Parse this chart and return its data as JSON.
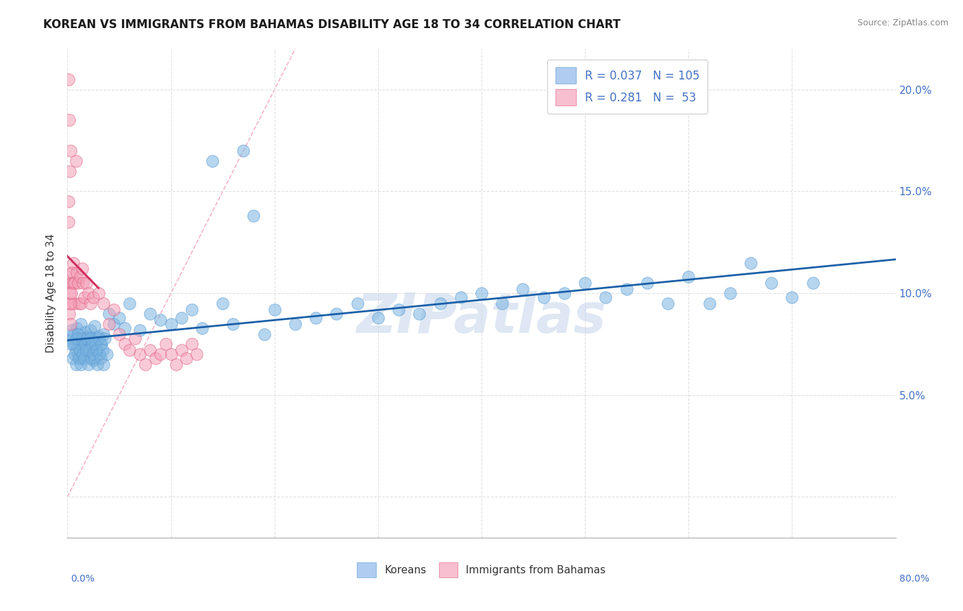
{
  "title": "KOREAN VS IMMIGRANTS FROM BAHAMAS DISABILITY AGE 18 TO 34 CORRELATION CHART",
  "source": "Source: ZipAtlas.com",
  "ylabel": "Disability Age 18 to 34",
  "xlim": [
    0.0,
    80.0
  ],
  "ylim": [
    -2.0,
    22.0
  ],
  "yticks": [
    0.0,
    5.0,
    10.0,
    15.0,
    20.0
  ],
  "korean_color": "#7ab3e0",
  "korean_edge_color": "#5b9bd5",
  "bahamas_color": "#f4a0b8",
  "bahamas_edge_color": "#e06080",
  "trendline_korean_color": "#1a5fa8",
  "trendline_bahamas_color": "#d03060",
  "diagonal_color": "#f4a0b8",
  "watermark_color": "#c8d8ec",
  "background_color": "#ffffff",
  "grid_color": "#e0e0e0",
  "right_label_color": "#4472c4",
  "korean_R": 0.037,
  "korean_N": 105,
  "bahamas_R": 0.281,
  "bahamas_N": 53,
  "korean_x": [
    0.5,
    0.6,
    0.7,
    0.8,
    0.9,
    1.0,
    1.1,
    1.2,
    1.3,
    1.4,
    1.5,
    1.6,
    1.7,
    1.8,
    1.9,
    2.0,
    2.1,
    2.2,
    2.3,
    2.4,
    2.5,
    2.6,
    2.8,
    3.0,
    3.2,
    3.5,
    4.0,
    4.5,
    5.0,
    5.5,
    6.0,
    7.0,
    8.0,
    9.0,
    10.0,
    11.0,
    12.0,
    13.0,
    14.0,
    15.0,
    16.0,
    17.0,
    18.0,
    19.0,
    20.0,
    22.0,
    24.0,
    26.0,
    28.0,
    30.0,
    32.0,
    34.0,
    36.0,
    38.0,
    40.0,
    42.0,
    44.0,
    46.0,
    48.0,
    50.0,
    52.0,
    54.0,
    56.0,
    58.0,
    60.0,
    62.0,
    64.0,
    66.0,
    68.0,
    70.0,
    72.0,
    0.3,
    0.4,
    0.5,
    0.6,
    0.7,
    0.8,
    0.9,
    1.0,
    1.1,
    1.2,
    1.3,
    1.4,
    1.5,
    1.6,
    1.7,
    1.8,
    1.9,
    2.0,
    2.1,
    2.2,
    2.3,
    2.4,
    2.5,
    2.6,
    2.7,
    2.8,
    2.9,
    3.0,
    3.1,
    3.2,
    3.3,
    3.4,
    3.5,
    3.6,
    3.8
  ],
  "korean_y": [
    7.8,
    8.0,
    7.5,
    7.2,
    8.3,
    7.0,
    7.8,
    6.8,
    8.5,
    7.3,
    7.7,
    6.9,
    8.1,
    7.4,
    7.9,
    7.1,
    7.6,
    8.2,
    7.3,
    7.8,
    6.7,
    8.4,
    7.2,
    7.9,
    7.5,
    8.0,
    9.0,
    8.5,
    8.8,
    8.3,
    9.5,
    8.2,
    9.0,
    8.7,
    8.5,
    8.8,
    9.2,
    8.3,
    16.5,
    9.5,
    8.5,
    17.0,
    13.8,
    8.0,
    9.2,
    8.5,
    8.8,
    9.0,
    9.5,
    8.8,
    9.2,
    9.0,
    9.5,
    9.8,
    10.0,
    9.5,
    10.2,
    9.8,
    10.0,
    10.5,
    9.8,
    10.2,
    10.5,
    9.5,
    10.8,
    9.5,
    10.0,
    11.5,
    10.5,
    9.8,
    10.5,
    7.5,
    8.2,
    6.8,
    7.5,
    7.0,
    6.5,
    7.8,
    8.0,
    6.8,
    7.2,
    6.5,
    7.8,
    7.0,
    6.8,
    7.5,
    7.2,
    7.8,
    6.5,
    7.2,
    7.8,
    6.8,
    7.5,
    7.0,
    6.8,
    7.5,
    7.2,
    6.5,
    7.8,
    7.0,
    6.8,
    7.5,
    7.2,
    6.5,
    7.8,
    7.0
  ],
  "bahamas_x": [
    0.1,
    0.15,
    0.2,
    0.25,
    0.3,
    0.35,
    0.4,
    0.45,
    0.5,
    0.55,
    0.6,
    0.65,
    0.7,
    0.8,
    0.9,
    1.0,
    1.1,
    1.2,
    1.3,
    1.4,
    1.5,
    1.6,
    1.8,
    2.0,
    2.2,
    2.5,
    3.0,
    3.5,
    4.0,
    4.5,
    5.0,
    5.5,
    6.0,
    6.5,
    7.0,
    7.5,
    8.0,
    8.5,
    9.0,
    9.5,
    10.0,
    10.5,
    11.0,
    11.5,
    12.0,
    12.5,
    0.08,
    0.12,
    0.18,
    0.22,
    0.28,
    0.32,
    0.38
  ],
  "bahamas_y": [
    20.5,
    9.5,
    18.5,
    10.0,
    17.0,
    10.5,
    11.0,
    10.5,
    11.0,
    10.5,
    11.5,
    9.5,
    10.5,
    16.5,
    11.0,
    10.5,
    9.5,
    10.8,
    9.5,
    11.2,
    10.5,
    9.8,
    10.5,
    10.0,
    9.5,
    9.8,
    10.0,
    9.5,
    8.5,
    9.2,
    8.0,
    7.5,
    7.2,
    7.8,
    7.0,
    6.5,
    7.2,
    6.8,
    7.0,
    7.5,
    7.0,
    6.5,
    7.2,
    6.8,
    7.5,
    7.0,
    14.5,
    13.5,
    9.0,
    16.0,
    9.5,
    8.5,
    10.0
  ]
}
